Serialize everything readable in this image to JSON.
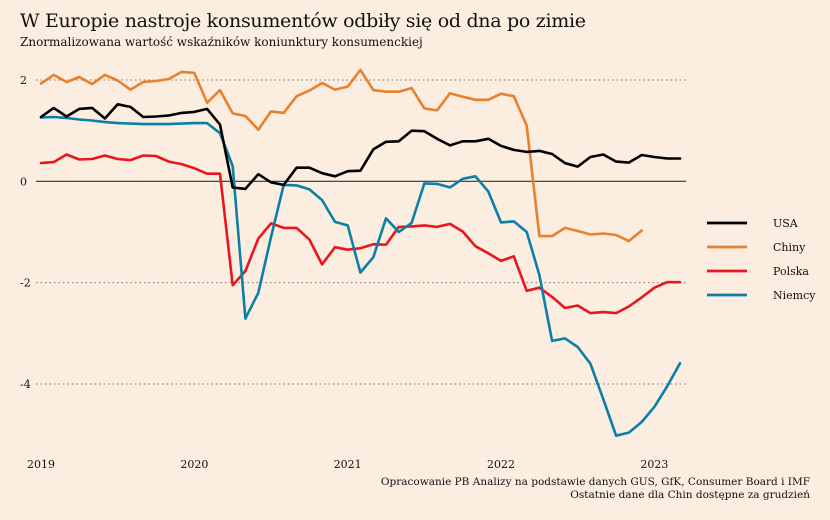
{
  "title": "W Europie nastroje konsumentów odbiły się od dna po zimie",
  "subtitle": "Znormalizowana wartość wskaźników koniunktury konsumenckiej",
  "source_line1": "Opracowanie PB Analizy na podstawie danych GUS, GfK, Consumer Board i IMF",
  "source_line2": "Ostatnie dane dla Chin dostępne za grudzień",
  "chart_data": {
    "type": "line",
    "title": "W Europie nastroje konsumentów odbiły się od dna po zimie",
    "subtitle": "Znormalizowana wartość wskaźników koniunktury konsumenckiej",
    "xlabel": "",
    "ylabel": "",
    "xlim": [
      2019.0,
      2023.25
    ],
    "ylim": [
      -5.5,
      2.5
    ],
    "x_ticks": [
      "2019",
      "2020",
      "2021",
      "2022",
      "2023"
    ],
    "y_ticks": [
      2,
      0,
      -2,
      -4
    ],
    "grid": "horizontal dotted",
    "legend_position": "right",
    "series": [
      {
        "name": "USA",
        "color": "#000000",
        "x": [
          2019.0,
          2019.083,
          2019.167,
          2019.25,
          2019.333,
          2019.417,
          2019.5,
          2019.583,
          2019.667,
          2019.75,
          2019.833,
          2019.917,
          2020.0,
          2020.083,
          2020.167,
          2020.25,
          2020.333,
          2020.417,
          2020.5,
          2020.583,
          2020.667,
          2020.75,
          2020.833,
          2020.917,
          2021.0,
          2021.083,
          2021.167,
          2021.25,
          2021.333,
          2021.417,
          2021.5,
          2021.583,
          2021.667,
          2021.75,
          2021.833,
          2021.917,
          2022.0,
          2022.083,
          2022.167,
          2022.25,
          2022.333,
          2022.417,
          2022.5,
          2022.583,
          2022.667,
          2022.75,
          2022.833,
          2022.917,
          2023.0,
          2023.083,
          2023.167
        ],
        "values": [
          1.27,
          1.45,
          1.28,
          1.43,
          1.45,
          1.24,
          1.52,
          1.47,
          1.27,
          1.28,
          1.3,
          1.35,
          1.37,
          1.43,
          1.12,
          -0.12,
          -0.15,
          0.14,
          -0.02,
          -0.07,
          0.27,
          0.27,
          0.16,
          0.1,
          0.2,
          0.21,
          0.63,
          0.78,
          0.79,
          1.0,
          0.99,
          0.84,
          0.71,
          0.79,
          0.79,
          0.84,
          0.7,
          0.62,
          0.58,
          0.6,
          0.54,
          0.36,
          0.29,
          0.48,
          0.53,
          0.39,
          0.37,
          0.52,
          0.48,
          0.45,
          0.45
        ]
      },
      {
        "name": "Chiny",
        "color": "#e8812e",
        "x": [
          2019.0,
          2019.083,
          2019.167,
          2019.25,
          2019.333,
          2019.417,
          2019.5,
          2019.583,
          2019.667,
          2019.75,
          2019.833,
          2019.917,
          2020.0,
          2020.083,
          2020.167,
          2020.25,
          2020.333,
          2020.417,
          2020.5,
          2020.583,
          2020.667,
          2020.75,
          2020.833,
          2020.917,
          2021.0,
          2021.083,
          2021.167,
          2021.25,
          2021.333,
          2021.417,
          2021.5,
          2021.583,
          2021.667,
          2021.75,
          2021.833,
          2021.917,
          2022.0,
          2022.083,
          2022.167,
          2022.25,
          2022.333,
          2022.417,
          2022.5,
          2022.583,
          2022.667,
          2022.75,
          2022.833,
          2022.917
        ],
        "values": [
          1.93,
          2.1,
          1.96,
          2.06,
          1.92,
          2.1,
          1.99,
          1.81,
          1.96,
          1.98,
          2.02,
          2.16,
          2.14,
          1.55,
          1.8,
          1.34,
          1.29,
          1.02,
          1.38,
          1.35,
          1.68,
          1.79,
          1.94,
          1.81,
          1.87,
          2.2,
          1.8,
          1.77,
          1.77,
          1.84,
          1.44,
          1.4,
          1.74,
          1.67,
          1.61,
          1.61,
          1.73,
          1.68,
          1.1,
          -1.08,
          -1.08,
          -0.92,
          -0.98,
          -1.05,
          -1.03,
          -1.06,
          -1.18,
          -0.97
        ]
      },
      {
        "name": "Polska",
        "color": "#e8171e",
        "x": [
          2019.0,
          2019.083,
          2019.167,
          2019.25,
          2019.333,
          2019.417,
          2019.5,
          2019.583,
          2019.667,
          2019.75,
          2019.833,
          2019.917,
          2020.0,
          2020.083,
          2020.167,
          2020.25,
          2020.333,
          2020.417,
          2020.5,
          2020.583,
          2020.667,
          2020.75,
          2020.833,
          2020.917,
          2021.0,
          2021.083,
          2021.167,
          2021.25,
          2021.333,
          2021.417,
          2021.5,
          2021.583,
          2021.667,
          2021.75,
          2021.833,
          2021.917,
          2022.0,
          2022.083,
          2022.167,
          2022.25,
          2022.333,
          2022.417,
          2022.5,
          2022.583,
          2022.667,
          2022.75,
          2022.833,
          2022.917,
          2023.0,
          2023.083,
          2023.167
        ],
        "values": [
          0.36,
          0.38,
          0.53,
          0.43,
          0.44,
          0.51,
          0.44,
          0.42,
          0.51,
          0.5,
          0.39,
          0.34,
          0.26,
          0.15,
          0.15,
          -2.05,
          -1.77,
          -1.13,
          -0.83,
          -0.92,
          -0.92,
          -1.15,
          -1.64,
          -1.3,
          -1.35,
          -1.32,
          -1.24,
          -1.25,
          -0.9,
          -0.89,
          -0.87,
          -0.9,
          -0.84,
          -0.99,
          -1.28,
          -1.42,
          -1.57,
          -1.48,
          -2.16,
          -2.1,
          -2.28,
          -2.5,
          -2.45,
          -2.6,
          -2.58,
          -2.6,
          -2.47,
          -2.29,
          -2.1,
          -1.99,
          -1.99
        ]
      },
      {
        "name": "Niemcy",
        "color": "#0c7fa6",
        "x": [
          2019.0,
          2019.083,
          2019.167,
          2019.25,
          2019.333,
          2019.417,
          2019.5,
          2019.583,
          2019.667,
          2019.75,
          2019.833,
          2019.917,
          2020.0,
          2020.083,
          2020.167,
          2020.25,
          2020.333,
          2020.417,
          2020.5,
          2020.583,
          2020.667,
          2020.75,
          2020.833,
          2020.917,
          2021.0,
          2021.083,
          2021.167,
          2021.25,
          2021.333,
          2021.417,
          2021.5,
          2021.583,
          2021.667,
          2021.75,
          2021.833,
          2021.917,
          2022.0,
          2022.083,
          2022.167,
          2022.25,
          2022.333,
          2022.417,
          2022.5,
          2022.583,
          2022.667,
          2022.75,
          2022.833,
          2022.917,
          2023.0,
          2023.083,
          2023.167
        ],
        "values": [
          1.26,
          1.27,
          1.25,
          1.22,
          1.2,
          1.17,
          1.15,
          1.14,
          1.13,
          1.13,
          1.13,
          1.14,
          1.15,
          1.15,
          0.95,
          0.3,
          -2.71,
          -2.2,
          -1.1,
          -0.07,
          -0.08,
          -0.16,
          -0.37,
          -0.8,
          -0.87,
          -1.8,
          -1.5,
          -0.73,
          -1.0,
          -0.82,
          -0.04,
          -0.05,
          -0.12,
          0.05,
          0.1,
          -0.2,
          -0.81,
          -0.79,
          -1.0,
          -1.85,
          -3.15,
          -3.1,
          -3.27,
          -3.6,
          -4.3,
          -5.02,
          -4.96,
          -4.75,
          -4.45,
          -4.05,
          -3.59
        ]
      }
    ]
  }
}
